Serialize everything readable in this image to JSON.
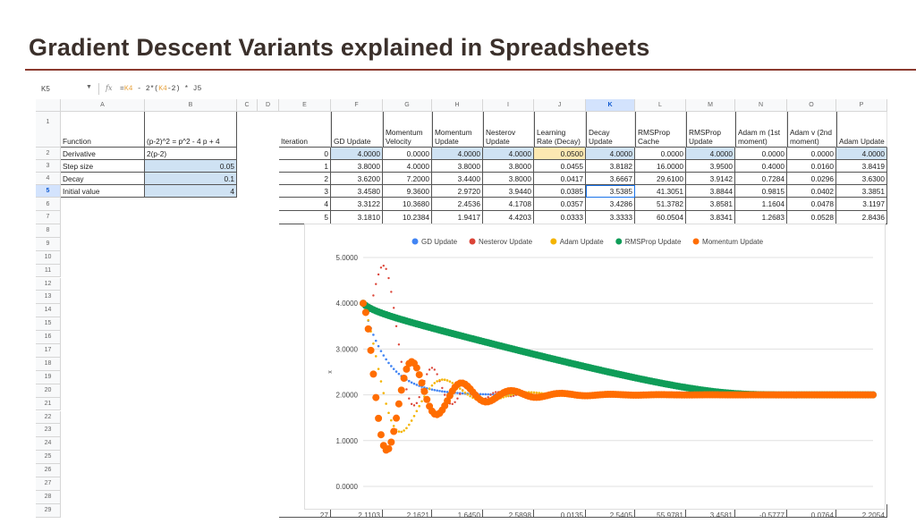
{
  "title": "Gradient Descent Variants explained in Spreadsheets",
  "formula_bar": {
    "cell_ref": "K5",
    "fx_label": "fx",
    "formula_parts": [
      "=",
      "K4",
      " - 2*(",
      "K4",
      "-2) * J5"
    ]
  },
  "columns": [
    "A",
    "B",
    "C",
    "D",
    "E",
    "F",
    "G",
    "H",
    "I",
    "J",
    "K",
    "L",
    "M",
    "N",
    "O",
    "P"
  ],
  "selected_column": "K",
  "selected_row": "5",
  "params": {
    "rows": [
      {
        "label": "Function",
        "value": "(p-2)^2 = p^2 - 4 p + 4"
      },
      {
        "label": "Derivative",
        "value": "2(p-2)"
      },
      {
        "label": "Step size",
        "value": "0.05"
      },
      {
        "label": "Decay",
        "value": "0.1"
      },
      {
        "label": "Initial value",
        "value": "4"
      }
    ]
  },
  "table": {
    "headers": [
      "Iteration",
      "GD Update",
      "Momentum Velocity",
      "Momentum Update",
      "Nesterov Update",
      "Learning Rate (Decay)",
      "Decay Update",
      "RMSProp Cache",
      "RMSProp Update",
      "Adam m (1st moment)",
      "Adam v (2nd moment)",
      "Adam Update"
    ],
    "rows": [
      [
        "0",
        "4.0000",
        "0.0000",
        "4.0000",
        "4.0000",
        "0.0500",
        "4.0000",
        "0.0000",
        "4.0000",
        "0.0000",
        "0.0000",
        "4.0000"
      ],
      [
        "1",
        "3.8000",
        "4.0000",
        "3.8000",
        "3.8000",
        "0.0455",
        "3.8182",
        "16.0000",
        "3.9500",
        "0.4000",
        "0.0160",
        "3.8419"
      ],
      [
        "2",
        "3.6200",
        "7.2000",
        "3.4400",
        "3.8000",
        "0.0417",
        "3.6667",
        "29.6100",
        "3.9142",
        "0.7284",
        "0.0296",
        "3.6300"
      ],
      [
        "3",
        "3.4580",
        "9.3600",
        "2.9720",
        "3.9440",
        "0.0385",
        "3.5385",
        "41.3051",
        "3.8844",
        "0.9815",
        "0.0402",
        "3.3851"
      ],
      [
        "4",
        "3.3122",
        "10.3680",
        "2.4536",
        "4.1708",
        "0.0357",
        "3.4286",
        "51.3782",
        "3.8581",
        "1.1604",
        "0.0478",
        "3.1197"
      ],
      [
        "5",
        "3.1810",
        "10.2384",
        "1.9417",
        "4.4203",
        "0.0333",
        "3.3333",
        "60.0504",
        "3.8341",
        "1.2683",
        "0.0528",
        "2.8436"
      ]
    ],
    "partial_row": [
      "27",
      "2.1103",
      "2.1621",
      "1.6450",
      "2.5898",
      "0.0135",
      "2.5405",
      "55.9781",
      "3.4581",
      "-0.5777",
      "0.0764",
      "2.2054"
    ]
  },
  "chart_data": {
    "type": "scatter",
    "title": "",
    "xlabel": "",
    "ylabel": "x",
    "ylim": [
      0,
      5
    ],
    "xlim": [
      0,
      200
    ],
    "yticks": [
      "0.0000",
      "1.0000",
      "2.0000",
      "3.0000",
      "4.0000",
      "5.0000"
    ],
    "legend_position": "top",
    "grid": true,
    "generator": {
      "initial": 4,
      "target": 2,
      "step": 0.05,
      "momentum": 0.9,
      "rms_decay": 0.9,
      "adam_beta1": 0.9,
      "adam_beta2": 0.999,
      "iterations": 200
    },
    "series": [
      {
        "name": "GD Update",
        "color": "#4285f4",
        "rule": "gd"
      },
      {
        "name": "Nesterov Update",
        "color": "#db4437",
        "values": [
          4,
          3.8,
          3.8,
          3.944,
          4.171,
          4.42,
          4.63,
          4.78,
          4.82,
          4.75,
          4.55,
          4.25,
          3.9,
          3.5,
          3.1,
          2.72,
          2.4,
          2.12,
          1.92,
          1.8,
          1.77,
          1.82,
          1.95,
          2.12,
          2.3,
          2.45,
          2.55,
          2.59,
          2.55,
          2.45,
          2.3,
          2.15,
          2.0,
          1.88,
          1.81,
          1.8,
          1.84,
          1.92,
          2.02,
          2.1,
          2.16,
          2.18,
          2.16,
          2.1,
          2.03,
          1.97,
          1.93,
          1.91,
          1.92,
          1.95,
          2.0,
          2.04,
          2.06,
          2.06,
          2.04,
          2.01,
          1.98,
          1.97,
          1.97,
          1.98,
          2.0
        ]
      },
      {
        "name": "Adam Update",
        "color": "#f4b400",
        "rule": "adam"
      },
      {
        "name": "RMSProp Update",
        "color": "#0f9d58",
        "rule": "rmsprop"
      },
      {
        "name": "Momentum Update",
        "color": "#ff6d01",
        "rule": "momentum"
      }
    ]
  }
}
